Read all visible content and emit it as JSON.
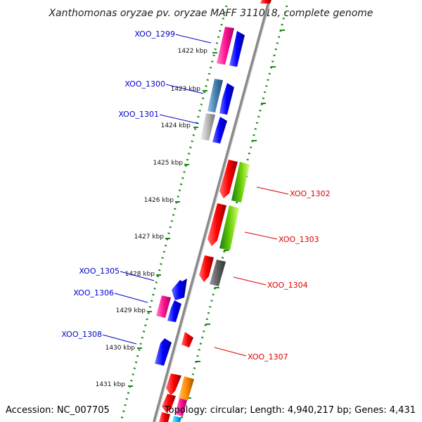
{
  "title": "Xanthomonas oryzae pv. oryzae MAFF 311018, complete genome",
  "footer": {
    "accession": "Accession: NC_007705",
    "topology": "Topology: circular; Length: 4,940,217 bp; Genes: 4,431"
  },
  "colors": {
    "backbone": "#8a8a8a",
    "tick": "#1a8a1a",
    "left_label": "#0000cc",
    "right_label": "#dd0000"
  },
  "kbp_ticks": [
    {
      "label": "1422 kbp"
    },
    {
      "label": "1423 kbp"
    },
    {
      "label": "1424 kbp"
    },
    {
      "label": "1425 kbp"
    },
    {
      "label": "1426 kbp"
    },
    {
      "label": "1427 kbp"
    },
    {
      "label": "1428 kbp"
    },
    {
      "label": "1429 kbp"
    },
    {
      "label": "1430 kbp"
    },
    {
      "label": "1431 kbp"
    }
  ],
  "gene_labels": {
    "left": [
      "XOO_1299",
      "XOO_1300",
      "XOO_1301",
      "XOO_1305",
      "XOO_1306",
      "XOO_1308"
    ],
    "right": [
      "XOO_1302",
      "XOO_1303",
      "XOO_1304",
      "XOO_1307"
    ]
  },
  "gene_colors": [
    "#ff1493",
    "#0000ff",
    "#4682b4",
    "#b0b0b0",
    "#ff0000",
    "#66cc00",
    "#606060",
    "#ff8c00",
    "#00bfff"
  ]
}
